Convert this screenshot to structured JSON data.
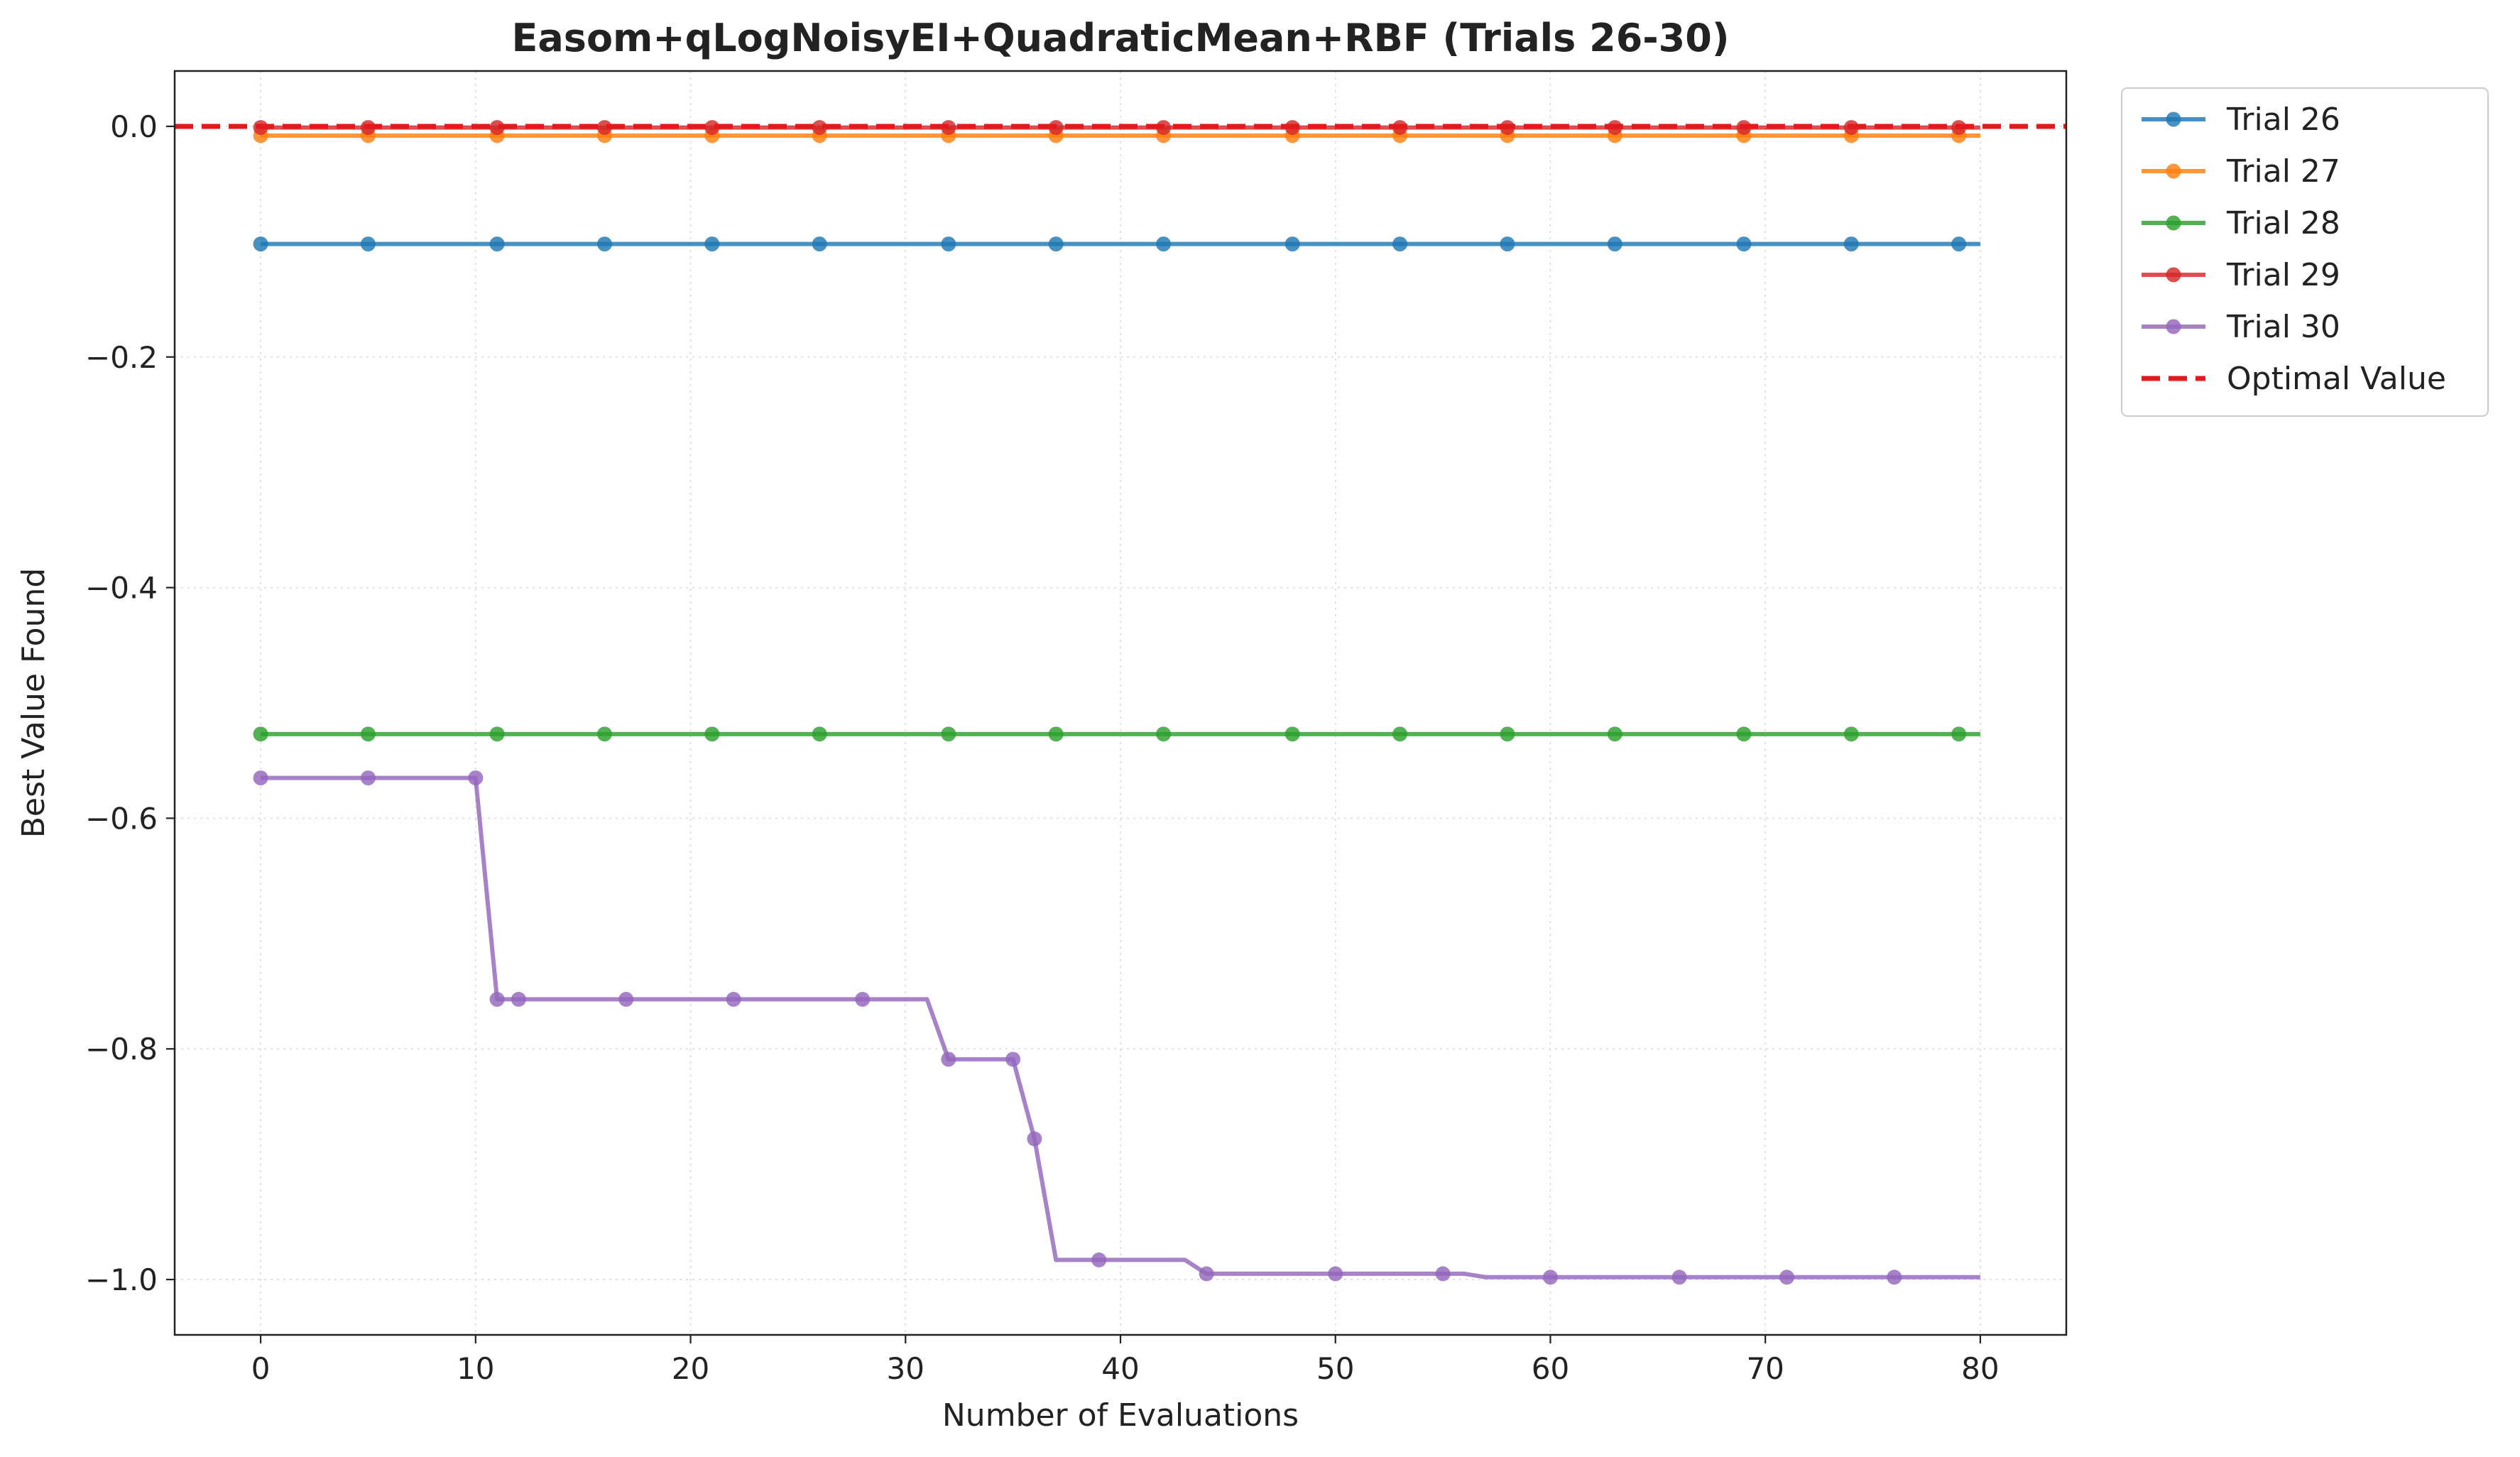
{
  "chart_data": {
    "type": "line",
    "title": "Easom+qLogNoisyEI+QuadraticMean+RBF (Trials 26-30)",
    "xlabel": "Number of Evaluations",
    "ylabel": "Best Value Found",
    "xlim": [
      -4,
      84
    ],
    "ylim": [
      -1.048,
      0.048
    ],
    "xticks": [
      0,
      10,
      20,
      30,
      40,
      50,
      60,
      70,
      80
    ],
    "xtick_labels": [
      "0",
      "10",
      "20",
      "30",
      "40",
      "50",
      "60",
      "70",
      "80"
    ],
    "yticks": [
      0.0,
      -0.2,
      -0.4,
      -0.6,
      -0.8,
      -1.0
    ],
    "ytick_labels": [
      "0.0",
      "−0.2",
      "−0.4",
      "−0.6",
      "−0.8",
      "−1.0"
    ],
    "grid": true,
    "legend_position": "outside-right-top",
    "series": [
      {
        "name": "Trial 26",
        "color": "#1f77b4",
        "line": [
          [
            0,
            -0.102
          ],
          [
            80,
            -0.102
          ]
        ],
        "markers": [
          [
            0,
            -0.102
          ],
          [
            5,
            -0.102
          ],
          [
            11,
            -0.102
          ],
          [
            16,
            -0.102
          ],
          [
            21,
            -0.102
          ],
          [
            26,
            -0.102
          ],
          [
            32,
            -0.102
          ],
          [
            37,
            -0.102
          ],
          [
            42,
            -0.102
          ],
          [
            48,
            -0.102
          ],
          [
            53,
            -0.102
          ],
          [
            58,
            -0.102
          ],
          [
            63,
            -0.102
          ],
          [
            69,
            -0.102
          ],
          [
            74,
            -0.102
          ],
          [
            79,
            -0.102
          ]
        ]
      },
      {
        "name": "Trial 27",
        "color": "#ff7f0e",
        "line": [
          [
            0,
            -0.008
          ],
          [
            80,
            -0.008
          ]
        ],
        "markers": [
          [
            0,
            -0.008
          ],
          [
            5,
            -0.008
          ],
          [
            11,
            -0.008
          ],
          [
            16,
            -0.008
          ],
          [
            21,
            -0.008
          ],
          [
            26,
            -0.008
          ],
          [
            32,
            -0.008
          ],
          [
            37,
            -0.008
          ],
          [
            42,
            -0.008
          ],
          [
            48,
            -0.008
          ],
          [
            53,
            -0.008
          ],
          [
            58,
            -0.008
          ],
          [
            63,
            -0.008
          ],
          [
            69,
            -0.008
          ],
          [
            74,
            -0.008
          ],
          [
            79,
            -0.008
          ]
        ]
      },
      {
        "name": "Trial 28",
        "color": "#2ca02c",
        "line": [
          [
            0,
            -0.527
          ],
          [
            80,
            -0.527
          ]
        ],
        "markers": [
          [
            0,
            -0.527
          ],
          [
            5,
            -0.527
          ],
          [
            11,
            -0.527
          ],
          [
            16,
            -0.527
          ],
          [
            21,
            -0.527
          ],
          [
            26,
            -0.527
          ],
          [
            32,
            -0.527
          ],
          [
            37,
            -0.527
          ],
          [
            42,
            -0.527
          ],
          [
            48,
            -0.527
          ],
          [
            53,
            -0.527
          ],
          [
            58,
            -0.527
          ],
          [
            63,
            -0.527
          ],
          [
            69,
            -0.527
          ],
          [
            74,
            -0.527
          ],
          [
            79,
            -0.527
          ]
        ]
      },
      {
        "name": "Trial 29",
        "color": "#d62728",
        "line": [
          [
            0,
            -0.001
          ],
          [
            80,
            -0.001
          ]
        ],
        "markers": [
          [
            0,
            -0.001
          ],
          [
            5,
            -0.001
          ],
          [
            11,
            -0.001
          ],
          [
            16,
            -0.001
          ],
          [
            21,
            -0.001
          ],
          [
            26,
            -0.001
          ],
          [
            32,
            -0.001
          ],
          [
            37,
            -0.001
          ],
          [
            42,
            -0.001
          ],
          [
            48,
            -0.001
          ],
          [
            53,
            -0.001
          ],
          [
            58,
            -0.001
          ],
          [
            63,
            -0.001
          ],
          [
            69,
            -0.001
          ],
          [
            74,
            -0.001
          ],
          [
            79,
            -0.001
          ]
        ]
      },
      {
        "name": "Trial 30",
        "color": "#9467bd",
        "line": [
          [
            0,
            -0.565
          ],
          [
            10,
            -0.565
          ],
          [
            11,
            -0.757
          ],
          [
            31,
            -0.757
          ],
          [
            32,
            -0.809
          ],
          [
            35,
            -0.809
          ],
          [
            36,
            -0.878
          ],
          [
            37,
            -0.983
          ],
          [
            43,
            -0.983
          ],
          [
            44,
            -0.995
          ],
          [
            56,
            -0.995
          ],
          [
            57,
            -0.998
          ],
          [
            80,
            -0.998
          ]
        ],
        "markers": [
          [
            0,
            -0.565
          ],
          [
            5,
            -0.565
          ],
          [
            10,
            -0.565
          ],
          [
            11,
            -0.757
          ],
          [
            12,
            -0.757
          ],
          [
            17,
            -0.757
          ],
          [
            22,
            -0.757
          ],
          [
            28,
            -0.757
          ],
          [
            32,
            -0.809
          ],
          [
            35,
            -0.809
          ],
          [
            36,
            -0.878
          ],
          [
            39,
            -0.983
          ],
          [
            44,
            -0.995
          ],
          [
            50,
            -0.995
          ],
          [
            55,
            -0.995
          ],
          [
            60,
            -0.998
          ],
          [
            66,
            -0.998
          ],
          [
            71,
            -0.998
          ],
          [
            76,
            -0.998
          ]
        ]
      }
    ],
    "reference_line": {
      "name": "Optimal Value",
      "y": 0.0,
      "color": "#e31a1c",
      "style": "dashed"
    }
  }
}
